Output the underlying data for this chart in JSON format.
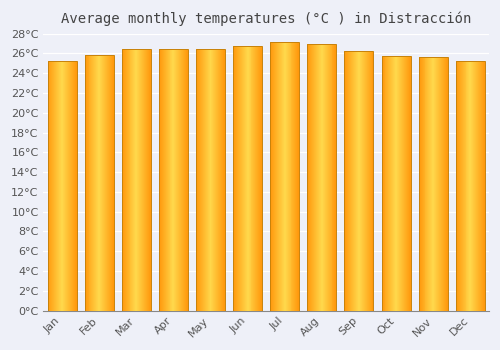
{
  "title": "Average monthly temperatures (°C ) in Distracción",
  "months": [
    "Jan",
    "Feb",
    "Mar",
    "Apr",
    "May",
    "Jun",
    "Jul",
    "Aug",
    "Sep",
    "Oct",
    "Nov",
    "Dec"
  ],
  "temperatures": [
    25.2,
    25.8,
    26.5,
    26.5,
    26.5,
    26.8,
    27.2,
    27.0,
    26.3,
    25.7,
    25.6,
    25.2
  ],
  "bar_color_face": "#FFA500",
  "bar_color_light": "#FFD070",
  "bar_color_edge": "#C8820A",
  "ylim": [
    0,
    28
  ],
  "ytick_step": 2,
  "background_color": "#EEF0F8",
  "plot_bg_color": "#EEF0F8",
  "grid_color": "#ffffff",
  "title_fontsize": 10,
  "tick_fontsize": 8,
  "title_color": "#444444",
  "tick_color": "#555555"
}
